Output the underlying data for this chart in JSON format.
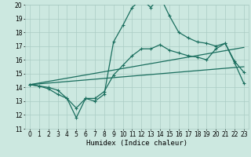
{
  "title": "",
  "xlabel": "Humidex (Indice chaleur)",
  "xlim": [
    -0.5,
    23.5
  ],
  "ylim": [
    11,
    20
  ],
  "xticks": [
    0,
    1,
    2,
    3,
    4,
    5,
    6,
    7,
    8,
    9,
    10,
    11,
    12,
    13,
    14,
    15,
    16,
    17,
    18,
    19,
    20,
    21,
    22,
    23
  ],
  "yticks": [
    11,
    12,
    13,
    14,
    15,
    16,
    17,
    18,
    19,
    20
  ],
  "bg_color": "#cce8e0",
  "line_color": "#1a6e5e",
  "grid_color": "#aaccc4",
  "curve1_x": [
    0,
    1,
    2,
    3,
    4,
    5,
    6,
    7,
    8,
    9,
    10,
    11,
    12,
    13,
    14,
    15,
    16,
    17,
    18,
    19,
    20,
    21,
    22,
    23
  ],
  "curve1_y": [
    14.2,
    14.1,
    14.0,
    13.8,
    13.2,
    11.8,
    13.2,
    13.0,
    13.5,
    17.3,
    18.5,
    19.8,
    20.4,
    19.8,
    20.6,
    19.2,
    18.0,
    17.6,
    17.3,
    17.2,
    17.0,
    17.2,
    15.8,
    14.3
  ],
  "curve2_x": [
    0,
    23
  ],
  "curve2_y": [
    14.2,
    16.9
  ],
  "curve3_x": [
    0,
    23
  ],
  "curve3_y": [
    14.2,
    15.5
  ],
  "curve4_x": [
    0,
    1,
    2,
    3,
    4,
    5,
    6,
    7,
    8,
    9,
    10,
    11,
    12,
    13,
    14,
    15,
    16,
    17,
    18,
    19,
    20,
    21,
    22,
    23
  ],
  "curve4_y": [
    14.2,
    14.1,
    13.9,
    13.5,
    13.2,
    12.5,
    13.2,
    13.2,
    13.7,
    14.9,
    15.6,
    16.3,
    16.8,
    16.8,
    17.1,
    16.7,
    16.5,
    16.3,
    16.2,
    16.0,
    16.8,
    17.2,
    15.9,
    15.1
  ],
  "marker": "+",
  "markersize": 3.5,
  "markeredgewidth": 0.8,
  "linewidth": 0.9,
  "axis_fontsize": 6.5,
  "tick_fontsize": 5.5
}
